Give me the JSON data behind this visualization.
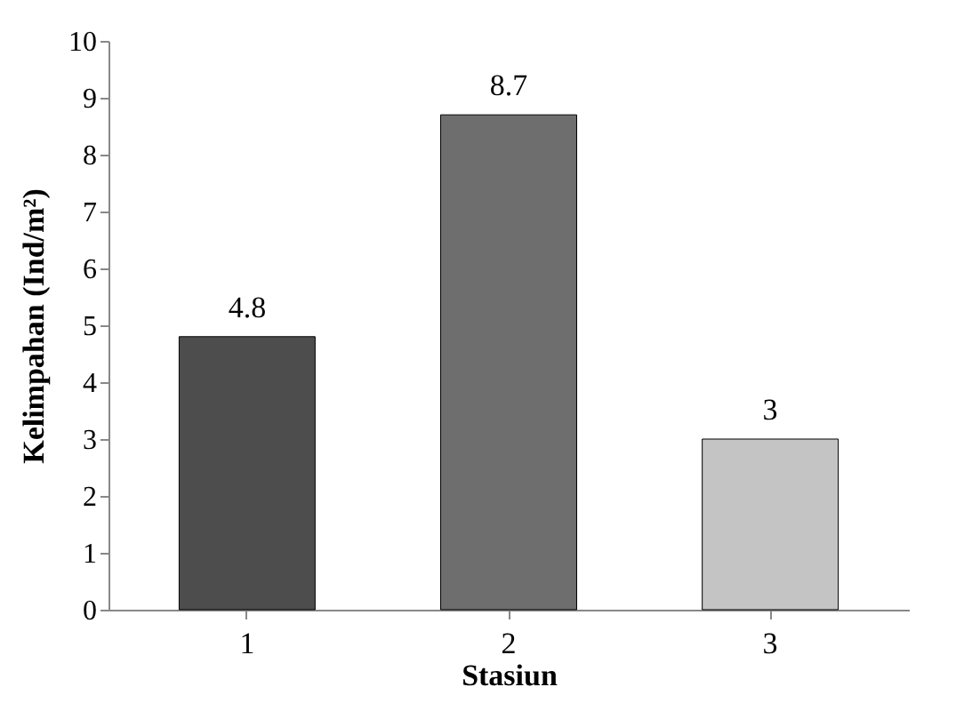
{
  "chart_data": {
    "type": "bar",
    "xlabel": "Stasiun",
    "ylabel": "Kelimpahan (Ind/m²)",
    "categories": [
      "1",
      "2",
      "3"
    ],
    "values": [
      4.8,
      8.7,
      3
    ],
    "colors": [
      "#4d4d4d",
      "#6e6e6e",
      "#c4c4c4"
    ],
    "ylim": [
      0,
      10
    ],
    "yticks": [
      0,
      1,
      2,
      3,
      4,
      5,
      6,
      7,
      8,
      9,
      10
    ],
    "grid": false,
    "data_labels": true
  }
}
